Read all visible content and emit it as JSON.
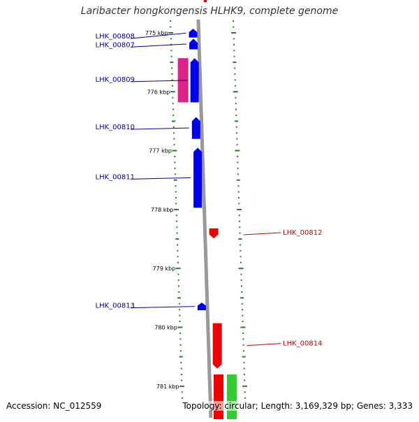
{
  "title": "Laribacter hongkongensis HLHK9, complete genome",
  "accession": "Accession: NC_012559",
  "topology": "Topology: circular; Length: 3,169,329 bp; Genes: 3,333",
  "colors": {
    "forward_cds": "#0000ee",
    "reverse_cds": "#ee0000",
    "pink_feature": "#e0208a",
    "green_feature": "#33cc33",
    "backbone": "#999999",
    "ticks": "#2a7a2a",
    "forward_label": "#000099",
    "reverse_label": "#cc0000"
  },
  "scale_labels": [
    {
      "label": "775 kbp",
      "kbp": 775
    },
    {
      "label": "776 kbp",
      "kbp": 776
    },
    {
      "label": "777 kbp",
      "kbp": 777
    },
    {
      "label": "778 kbp",
      "kbp": 778
    },
    {
      "label": "779 kbp",
      "kbp": 779
    },
    {
      "label": "780 kbp",
      "kbp": 780
    },
    {
      "label": "781 kbp",
      "kbp": 781
    }
  ],
  "forward_genes": [
    {
      "label": "LHK_00808",
      "start_kbp": 774.93,
      "end_kbp": 775.08
    },
    {
      "label": "LHK_00807",
      "start_kbp": 775.1,
      "end_kbp": 775.28
    },
    {
      "label": "LHK_00809",
      "start_kbp": 775.43,
      "end_kbp": 776.18
    },
    {
      "label": "LHK_00810",
      "start_kbp": 776.43,
      "end_kbp": 776.8
    },
    {
      "label": "LHK_00811",
      "start_kbp": 776.95,
      "end_kbp": 777.97
    },
    {
      "label": "LHK_00813",
      "start_kbp": 779.58,
      "end_kbp": 779.71
    }
  ],
  "reverse_genes": [
    {
      "label": "LHK_00812",
      "start_kbp": 778.32,
      "end_kbp": 778.49
    },
    {
      "label": "LHK_00814",
      "start_kbp": 779.93,
      "end_kbp": 780.7
    }
  ],
  "other_features": [
    {
      "type": "pink",
      "start_kbp": 775.43,
      "end_kbp": 776.18
    },
    {
      "type": "red",
      "start_kbp": 780.8,
      "end_kbp": 781.8
    },
    {
      "type": "green",
      "start_kbp": 780.8,
      "end_kbp": 781.8
    }
  ]
}
